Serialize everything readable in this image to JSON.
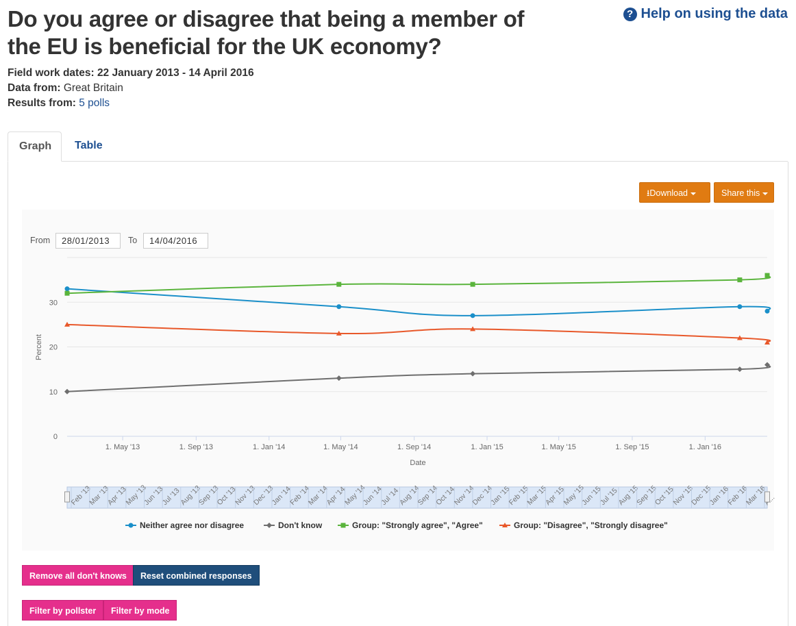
{
  "header": {
    "title": "Do you agree or disagree that being a member of the EU is beneficial for the UK economy?",
    "help_link": "Help on using the data"
  },
  "meta": {
    "fieldwork_label": "Field work dates:",
    "fieldwork_value": "22 January 2013 - 14 April 2016",
    "data_from_label": "Data from:",
    "data_from_value": "Great Britain",
    "results_label": "Results from:",
    "results_value": "5 polls"
  },
  "tabs": [
    {
      "label": "Graph",
      "active": true
    },
    {
      "label": "Table",
      "active": false
    }
  ],
  "toolbar": {
    "download_label": "Download",
    "share_label": "Share this"
  },
  "range": {
    "from_label": "From",
    "from_value": "28/01/2013",
    "to_label": "To",
    "to_value": "14/04/2016"
  },
  "chart_data": {
    "type": "line",
    "title": "",
    "xlabel": "Date",
    "ylabel": "Percent",
    "ylim": [
      0,
      40
    ],
    "yticks": [
      0,
      10,
      20,
      30
    ],
    "xlim": [
      "2013-01-28",
      "2016-04-14"
    ],
    "x_tick_labels": [
      {
        "date": "2013-05-01",
        "label": "1. May '13"
      },
      {
        "date": "2013-09-01",
        "label": "1. Sep '13"
      },
      {
        "date": "2014-01-01",
        "label": "1. Jan '14"
      },
      {
        "date": "2014-05-01",
        "label": "1. May '14"
      },
      {
        "date": "2014-09-01",
        "label": "1. Sep '14"
      },
      {
        "date": "2015-01-01",
        "label": "1. Jan '15"
      },
      {
        "date": "2015-05-01",
        "label": "1. May '15"
      },
      {
        "date": "2015-09-01",
        "label": "1. Sep '15"
      },
      {
        "date": "2016-01-01",
        "label": "1. Jan '16"
      }
    ],
    "x": [
      "2013-01-28",
      "2014-04-28",
      "2014-12-08",
      "2016-02-28",
      "2016-04-14"
    ],
    "series": [
      {
        "name": "Neither agree nor disagree",
        "color": "#1a8fc9",
        "marker": "circle",
        "values": [
          33,
          29,
          27,
          29,
          28
        ]
      },
      {
        "name": "Don't know",
        "color": "#6e6e6e",
        "marker": "diamond",
        "values": [
          10,
          13,
          14,
          15,
          16
        ]
      },
      {
        "name": "Group: \"Strongly agree\", \"Agree\"",
        "color": "#5ab43c",
        "marker": "square",
        "values": [
          32,
          34,
          34,
          35,
          36
        ]
      },
      {
        "name": "Group: \"Disagree\", \"Strongly disagree\"",
        "color": "#e8582a",
        "marker": "triangle",
        "values": [
          25,
          23,
          24,
          22,
          21
        ]
      }
    ],
    "grid": true,
    "legend": "bottom-center",
    "navigator_labels": [
      "Feb '13",
      "Mar '13",
      "Apr '13",
      "May '13",
      "Jun '13",
      "Jul '13",
      "Aug '13",
      "Sep '13",
      "Oct '13",
      "Nov '13",
      "Dec '13",
      "Jan '14",
      "Feb '14",
      "Mar '14",
      "Apr '14",
      "May '14",
      "Jun '14",
      "Jul '14",
      "Aug '14",
      "Sep '14",
      "Oct '14",
      "Nov '14",
      "Dec '14",
      "Jan '15",
      "Feb '15",
      "Mar '15",
      "Apr '15",
      "May '15",
      "Jun '15",
      "Jul '15",
      "Aug '15",
      "Sep '15",
      "Oct '15",
      "Nov '15",
      "Dec '15",
      "Jan '16",
      "Feb '16",
      "Mar '16",
      "A..."
    ]
  },
  "actions": {
    "remove_dont_knows": "Remove all don't knows",
    "reset_combined": "Reset combined responses",
    "filter_pollster": "Filter by pollster",
    "filter_mode": "Filter by mode"
  }
}
